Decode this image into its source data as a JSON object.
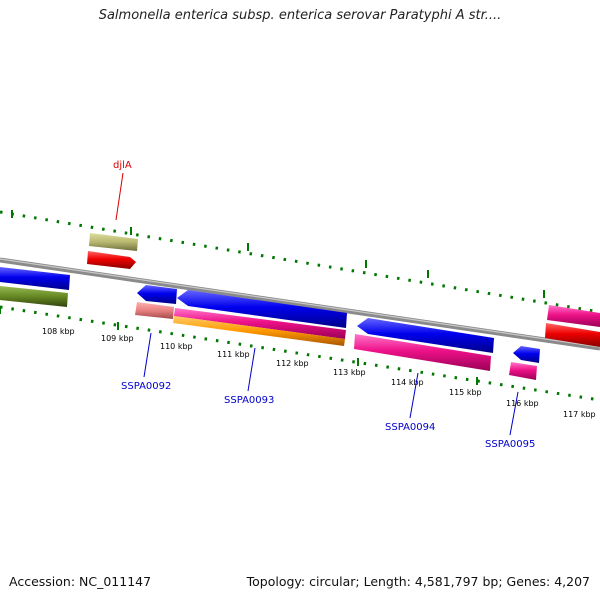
{
  "title": "Salmonella enterica subsp. enterica serovar Paratyphi A str....",
  "footer": {
    "accession": "Accession: NC_011147",
    "summary": "Topology: circular; Length: 4,581,797 bp; Genes: 4,207"
  },
  "ticks": [
    "108 kbp",
    "109 kbp",
    "110 kbp",
    "111 kbp",
    "112 kbp",
    "113 kbp",
    "114 kbp",
    "115 kbp",
    "116 kbp",
    "117 kbp"
  ],
  "gene_labels": {
    "djlA": "djlA",
    "sspa0092": "SSPA0092",
    "sspa0093": "SSPA0093",
    "sspa0094": "SSPA0094",
    "sspa0095": "SSPA0095"
  },
  "colors": {
    "forward_cds": "#0000ee",
    "reverse_cds": "#ee1188",
    "outer_gene": "#b8b870",
    "red_gene": "#ee0000",
    "salmon_gene": "#e88080",
    "orange_gene": "#ff9900",
    "green_gene": "#668822",
    "label_red": "#dd0000",
    "label_blue": "#0000cc",
    "tick_green": "#007700",
    "backbone": "#888888"
  }
}
